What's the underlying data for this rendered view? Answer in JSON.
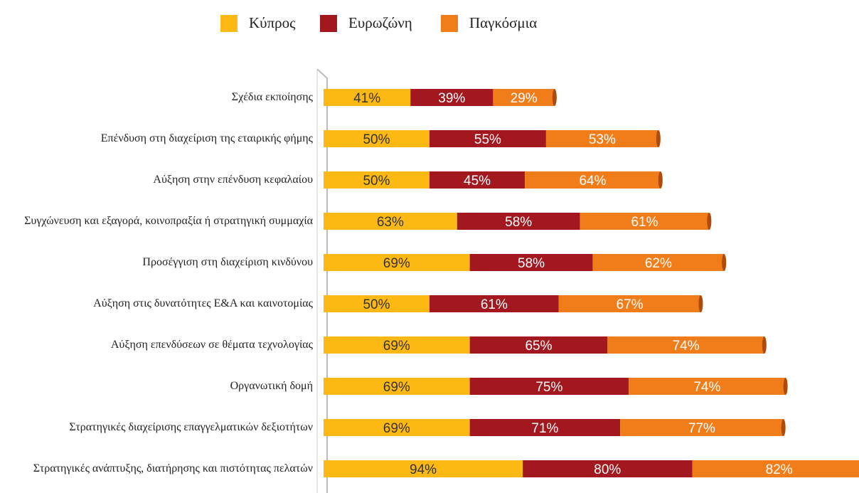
{
  "chart_data": {
    "type": "bar",
    "orientation": "horizontal",
    "stacked": true,
    "categories": [
      "Σχέδια εκποίησης",
      "Επένδυση στη διαχείριση της εταιρικής φήμης",
      "Αύξηση στην επένδυση κεφαλαίου",
      "Συγχώνευση και εξαγορά, κοινοπραξία ή στρατηγική συμμαχία",
      "Προσέγγιση στη διαχείριση κινδύνου",
      "Αύξηση στις δυνατότητες Ε&Α και καινοτομίας",
      "Αύξηση επενδύσεων σε θέματα τεχνολογίας",
      "Οργανωτική δομή",
      "Στρατηγικές διαχείρισης επαγγελματικών δεξιοτήτων",
      "Στρατηγικές ανάπτυξης, διατήρησης και πιστότητας πελατών"
    ],
    "series": [
      {
        "name": "Κύπρος",
        "color": "#fdb913",
        "values": [
          41,
          50,
          50,
          63,
          69,
          50,
          69,
          69,
          69,
          94
        ],
        "value_labels": [
          "41%",
          "50%",
          "50%",
          "63%",
          "69%",
          "50%",
          "69%",
          "69%",
          "69%",
          "94%"
        ]
      },
      {
        "name": "Ευρωζώνη",
        "color": "#a3171e",
        "values": [
          39,
          55,
          45,
          58,
          58,
          61,
          65,
          75,
          71,
          80
        ],
        "value_labels": [
          "39%",
          "55%",
          "45%",
          "58%",
          "58%",
          "61%",
          "65%",
          "75%",
          "71%",
          "80%"
        ]
      },
      {
        "name": "Παγκόσμια",
        "color": "#f07d1a",
        "values": [
          29,
          53,
          64,
          61,
          62,
          67,
          74,
          74,
          77,
          82
        ],
        "value_labels": [
          "29%",
          "53%",
          "64%",
          "61%",
          "62%",
          "67%",
          "74%",
          "74%",
          "77%",
          "82%"
        ]
      }
    ],
    "legend": "top"
  }
}
